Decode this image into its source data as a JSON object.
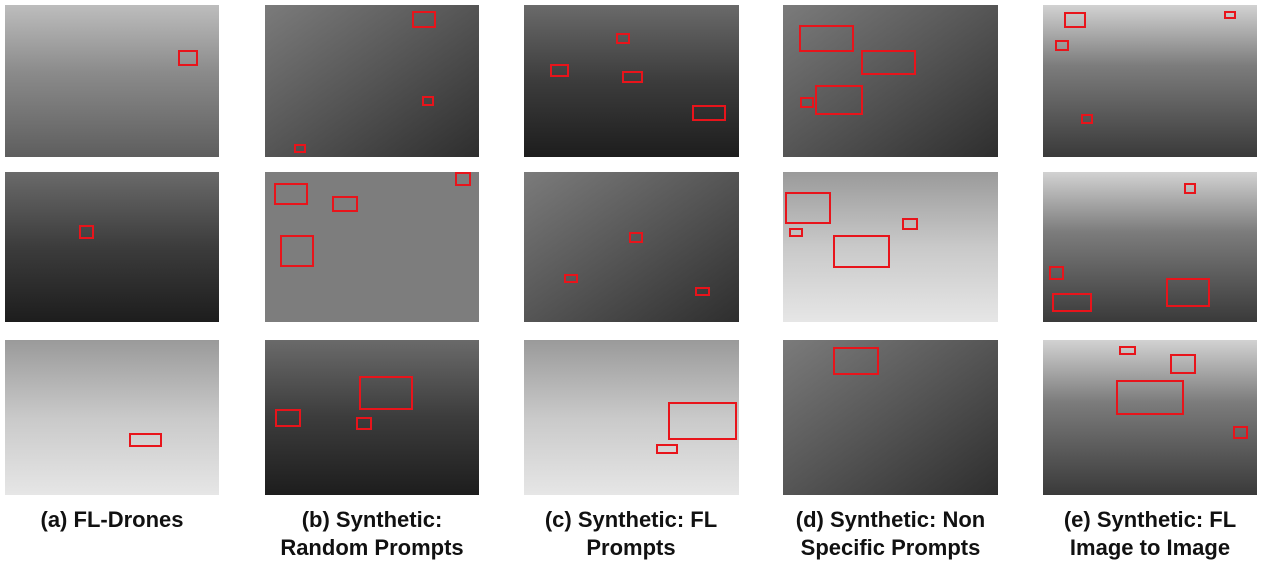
{
  "captions": [
    "(a) FL-Drones",
    "(b) Synthetic: Random Prompts",
    "(c) Synthetic: FL Prompts",
    "(d) Synthetic: Non Specific Prompts",
    "(e) Synthetic: FL Image to Image"
  ]
}
